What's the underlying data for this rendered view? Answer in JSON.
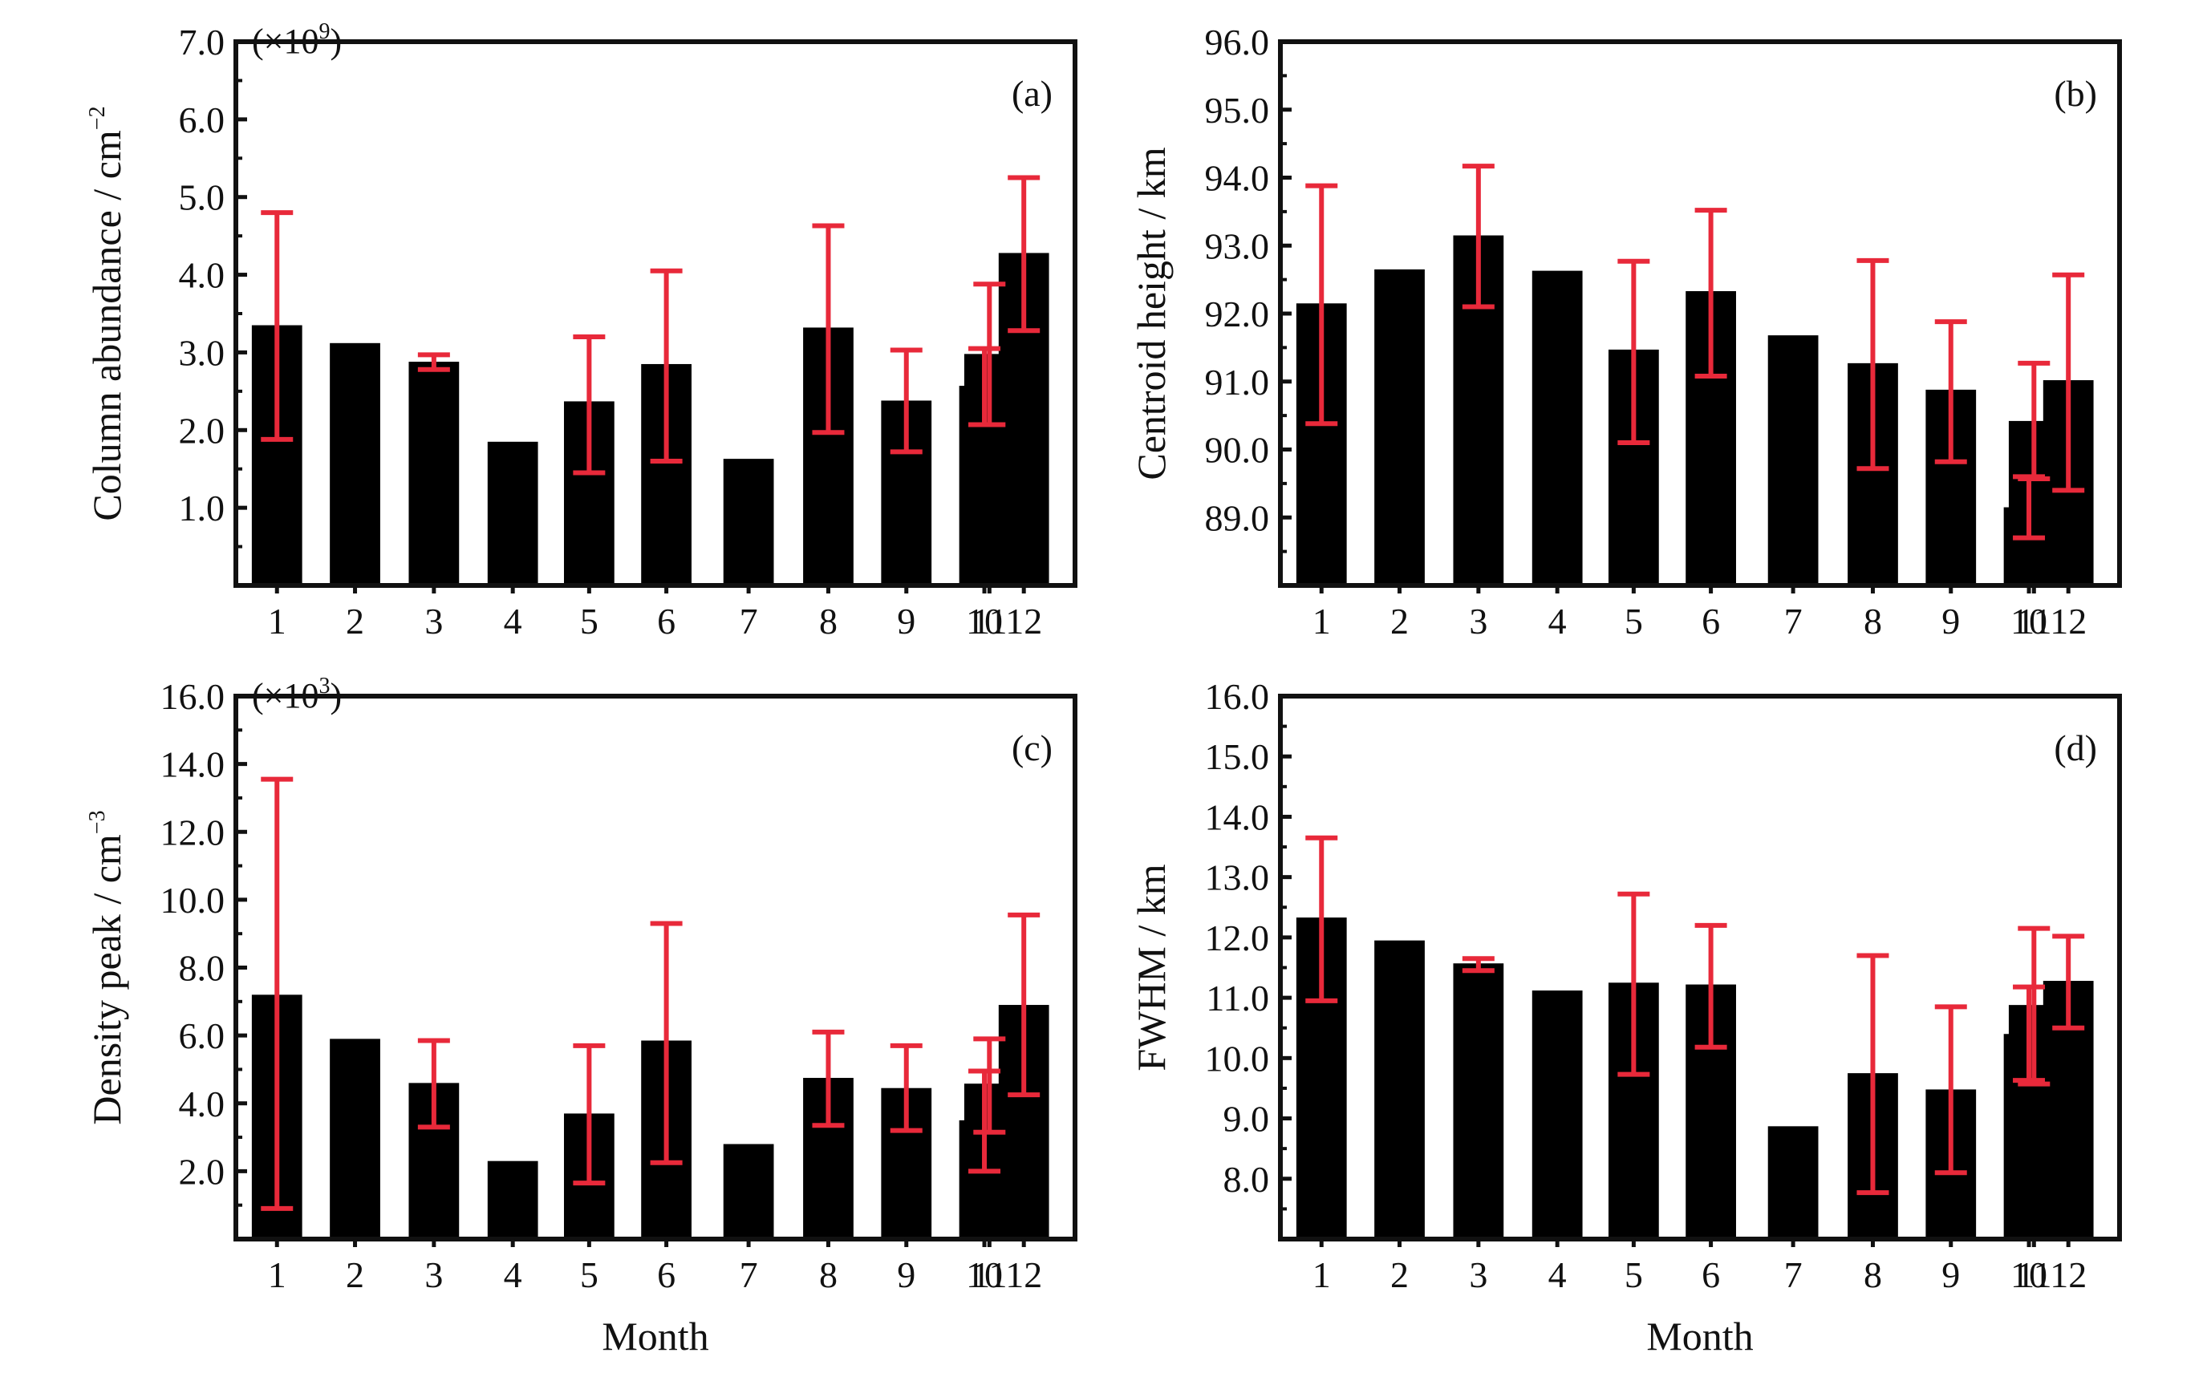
{
  "colors": {
    "bar": "#000000",
    "error_bar": "#e8293a",
    "axis": "#111111"
  },
  "shared": {
    "xlabel": "Month"
  },
  "chart_data": [
    {
      "type": "bar",
      "panel_tag": "(a)",
      "ylabel_main": "Column abundance / cm",
      "ylabel_sup": "−2",
      "scale_note": "(×10",
      "scale_exp": "9",
      "scale_close": ")",
      "xlabel": "",
      "categories": [
        "1",
        "2",
        "3",
        "4",
        "5",
        "6",
        "7",
        "8",
        "9",
        "10",
        "11",
        "12"
      ],
      "ylim": [
        0,
        7.0
      ],
      "yticks": [
        1.0,
        2.0,
        3.0,
        4.0,
        5.0,
        6.0,
        7.0
      ],
      "ytick_labels": [
        "1.0",
        "2.0",
        "3.0",
        "4.0",
        "5.0",
        "6.0",
        "7.0"
      ],
      "values": [
        3.35,
        3.12,
        2.88,
        1.85,
        2.37,
        2.85,
        1.63,
        3.32,
        2.38,
        2.57,
        2.98,
        4.28
      ],
      "err_low": [
        1.88,
        null,
        2.78,
        null,
        1.45,
        1.6,
        null,
        1.97,
        1.72,
        2.07,
        2.07,
        3.28
      ],
      "err_high": [
        4.8,
        null,
        2.97,
        null,
        3.2,
        4.05,
        null,
        4.63,
        3.03,
        3.05,
        3.88,
        5.25
      ]
    },
    {
      "type": "bar",
      "panel_tag": "(b)",
      "ylabel_main": "Centroid height / km",
      "ylabel_sup": "",
      "scale_note": "",
      "scale_exp": "",
      "scale_close": "",
      "xlabel": "",
      "categories": [
        "1",
        "2",
        "3",
        "4",
        "5",
        "6",
        "7",
        "8",
        "9",
        "10",
        "11",
        "12"
      ],
      "ylim": [
        88.0,
        96.0
      ],
      "yticks": [
        89.0,
        90.0,
        91.0,
        92.0,
        93.0,
        94.0,
        95.0,
        96.0
      ],
      "ytick_labels": [
        "89.0",
        "90.0",
        "91.0",
        "92.0",
        "93.0",
        "94.0",
        "95.0",
        "96.0"
      ],
      "values": [
        92.15,
        92.65,
        93.15,
        92.63,
        91.47,
        92.33,
        91.68,
        91.27,
        90.88,
        89.15,
        90.42,
        91.02
      ],
      "err_low": [
        90.38,
        null,
        92.1,
        null,
        90.1,
        91.08,
        null,
        89.72,
        89.82,
        88.7,
        89.57,
        89.4
      ],
      "err_high": [
        93.88,
        null,
        94.17,
        null,
        92.77,
        93.52,
        null,
        92.78,
        91.88,
        89.6,
        91.27,
        92.57
      ]
    },
    {
      "type": "bar",
      "panel_tag": "(c)",
      "ylabel_main": "Density peak / cm",
      "ylabel_sup": "−3",
      "scale_note": "(×10",
      "scale_exp": "3",
      "scale_close": ")",
      "xlabel": "Month",
      "categories": [
        "1",
        "2",
        "3",
        "4",
        "5",
        "6",
        "7",
        "8",
        "9",
        "10",
        "11",
        "12"
      ],
      "ylim": [
        0,
        16.0
      ],
      "yticks": [
        2.0,
        4.0,
        6.0,
        8.0,
        10.0,
        12.0,
        14.0,
        16.0
      ],
      "ytick_labels": [
        "2.0",
        "4.0",
        "6.0",
        "8.0",
        "10.0",
        "12.0",
        "14.0",
        "16.0"
      ],
      "values": [
        7.2,
        5.9,
        4.6,
        2.3,
        3.7,
        5.85,
        2.8,
        4.75,
        4.45,
        3.5,
        4.58,
        6.9
      ],
      "err_low": [
        0.9,
        null,
        3.3,
        null,
        1.65,
        2.25,
        null,
        3.35,
        3.2,
        2.0,
        3.15,
        4.25
      ],
      "err_high": [
        13.55,
        null,
        5.85,
        null,
        5.7,
        9.3,
        null,
        6.1,
        5.7,
        4.95,
        5.9,
        9.55
      ]
    },
    {
      "type": "bar",
      "panel_tag": "(d)",
      "ylabel_main": "FWHM / km",
      "ylabel_sup": "",
      "scale_note": "",
      "scale_exp": "",
      "scale_close": "",
      "xlabel": "Month",
      "categories": [
        "1",
        "2",
        "3",
        "4",
        "5",
        "6",
        "7",
        "8",
        "9",
        "10",
        "11",
        "12"
      ],
      "ylim": [
        7.0,
        16.0
      ],
      "yticks": [
        8.0,
        9.0,
        10.0,
        11.0,
        12.0,
        13.0,
        14.0,
        15.0,
        16.0
      ],
      "ytick_labels": [
        "8.0",
        "9.0",
        "10.0",
        "11.0",
        "12.0",
        "13.0",
        "14.0",
        "15.0",
        "16.0"
      ],
      "values": [
        12.33,
        11.95,
        11.57,
        11.12,
        11.25,
        11.22,
        8.87,
        9.75,
        9.48,
        10.4,
        10.88,
        11.28
      ],
      "err_low": [
        10.95,
        null,
        11.45,
        null,
        9.73,
        10.18,
        null,
        7.77,
        8.1,
        9.63,
        9.57,
        10.5
      ],
      "err_high": [
        13.65,
        null,
        11.65,
        null,
        12.72,
        12.2,
        null,
        11.7,
        10.85,
        11.18,
        12.15,
        12.02
      ]
    }
  ]
}
